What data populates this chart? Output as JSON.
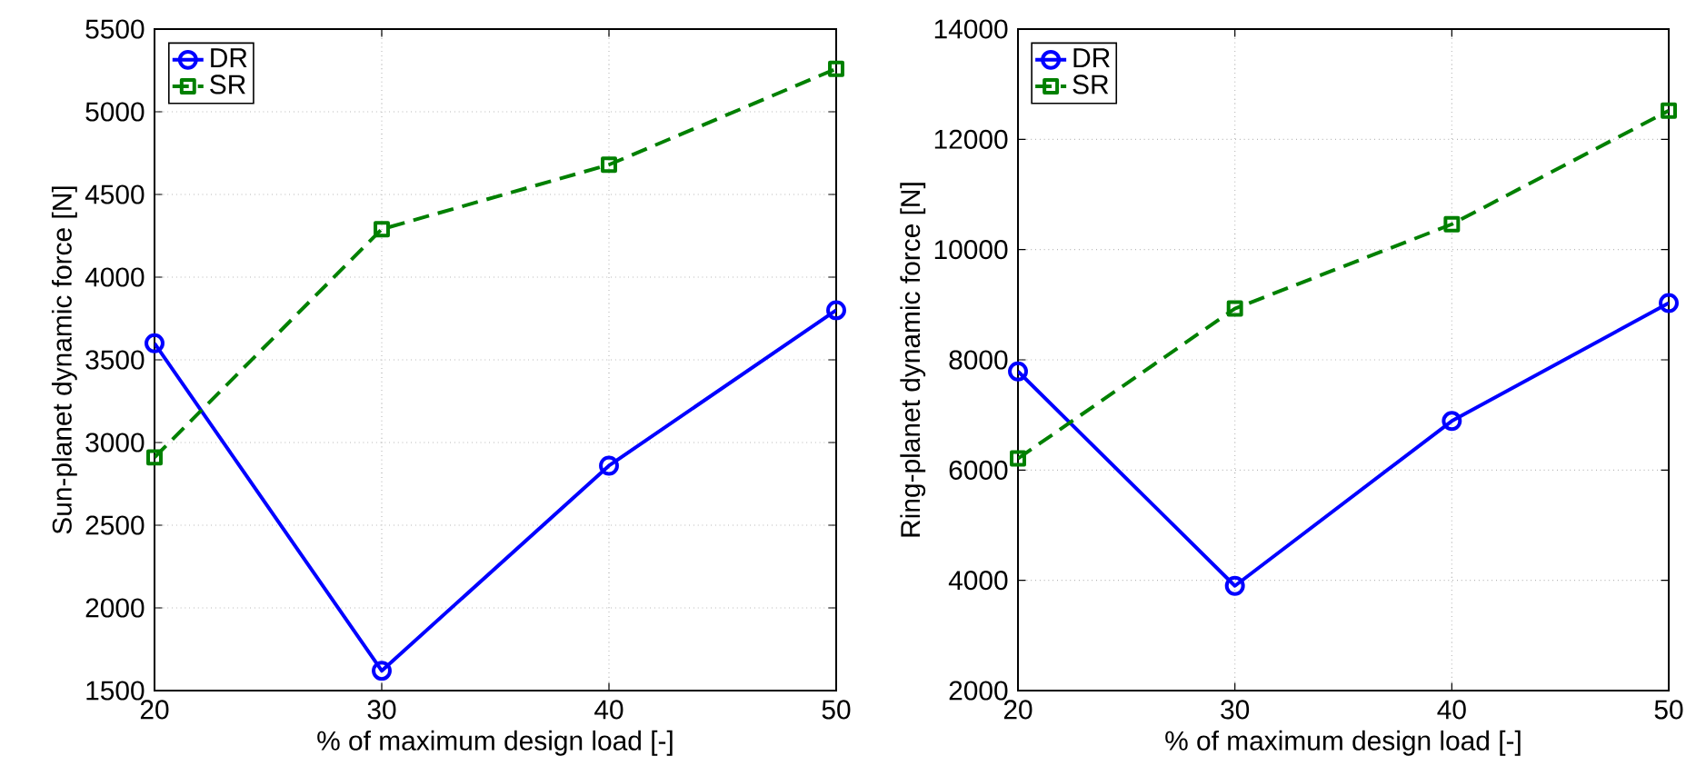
{
  "chart_data": [
    {
      "type": "line",
      "xlabel": "% of maximum design load [-]",
      "ylabel": "Sun-planet dynamic force [N]",
      "x": [
        20,
        30,
        40,
        50
      ],
      "xlim": [
        20,
        50
      ],
      "xticks": [
        20,
        30,
        40,
        50
      ],
      "ylim": [
        1500,
        5500
      ],
      "yticks": [
        1500,
        2000,
        2500,
        3000,
        3500,
        4000,
        4500,
        5000,
        5500
      ],
      "grid": true,
      "legend": "top left",
      "series": [
        {
          "name": "DR",
          "color": "#0000ff",
          "marker": "circle",
          "line_style": "solid",
          "values": [
            3600,
            1620,
            2860,
            3800
          ]
        },
        {
          "name": "SR",
          "color": "#008000",
          "marker": "square",
          "line_style": "dashed",
          "values": [
            2910,
            4290,
            4680,
            5260
          ]
        }
      ]
    },
    {
      "type": "line",
      "xlabel": "% of maximum design load [-]",
      "ylabel": "Ring-planet dynamic force [N]",
      "x": [
        20,
        30,
        40,
        50
      ],
      "xlim": [
        20,
        50
      ],
      "xticks": [
        20,
        30,
        40,
        50
      ],
      "ylim": [
        2000,
        14000
      ],
      "yticks": [
        2000,
        4000,
        6000,
        8000,
        10000,
        12000,
        14000
      ],
      "grid": true,
      "legend": "top left",
      "series": [
        {
          "name": "DR",
          "color": "#0000ff",
          "marker": "circle",
          "line_style": "solid",
          "values": [
            7790,
            3900,
            6890,
            9030
          ]
        },
        {
          "name": "SR",
          "color": "#008000",
          "marker": "square",
          "line_style": "dashed",
          "values": [
            6210,
            8930,
            10460,
            12520
          ]
        }
      ]
    }
  ]
}
